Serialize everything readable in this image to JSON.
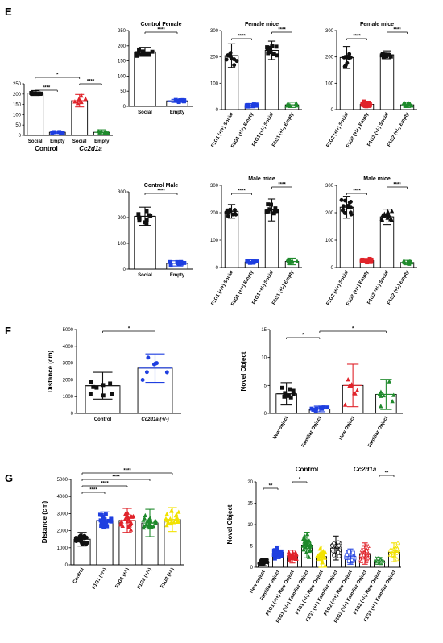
{
  "panel_labels": {
    "e": "E",
    "f": "F",
    "g": "G"
  },
  "colors": {
    "black": "#111111",
    "blue": "#1f3fe0",
    "red": "#e0242b",
    "green": "#1f8a2c",
    "yellow": "#f2e200"
  },
  "chart_data": [
    {
      "id": "e_main",
      "type": "bar",
      "title": "",
      "ylabel": "",
      "ylim": [
        0,
        250
      ],
      "yticks": [
        0,
        50,
        100,
        150,
        200,
        250
      ],
      "categories": [
        "Social",
        "Empty",
        "Social",
        "Empty"
      ],
      "groups": [
        {
          "label": "Control",
          "span": [
            0,
            1
          ],
          "italic": false
        },
        {
          "label": "Cc2d1a",
          "span": [
            2,
            3
          ],
          "italic": true
        }
      ],
      "values": [
        205,
        15,
        168,
        15
      ],
      "errors": [
        12,
        6,
        30,
        12
      ],
      "colors": [
        "black",
        "blue",
        "red",
        "green"
      ],
      "markers": [
        "square",
        "square",
        "triangle",
        "triangle"
      ],
      "rotate": false,
      "sig": [
        {
          "a": 0,
          "b": 1,
          "label": "****"
        },
        {
          "a": 2,
          "b": 3,
          "label": "****"
        },
        {
          "a": 0,
          "b": 2,
          "label": "*"
        }
      ]
    },
    {
      "id": "e_cf",
      "type": "bar",
      "title": "Control Female",
      "ylabel": "",
      "ylim": [
        0,
        250
      ],
      "yticks": [
        0,
        50,
        100,
        150,
        200,
        250
      ],
      "categories": [
        "Social",
        "Empty"
      ],
      "values": [
        180,
        18
      ],
      "errors": [
        15,
        5
      ],
      "colors": [
        "black",
        "blue"
      ],
      "markers": [
        "square",
        "square"
      ],
      "rotate": false,
      "sig": [
        {
          "a": 0,
          "b": 1,
          "label": "****"
        }
      ]
    },
    {
      "id": "e_fm1",
      "type": "bar",
      "title": "Female mice",
      "ylabel": "",
      "ylim": [
        0,
        300
      ],
      "yticks": [
        0,
        100,
        200,
        300
      ],
      "categories": [
        "F1G1 (+/+) Social",
        "F1G1 (+/+) Empty",
        "F1G1 (+/-) Social",
        "F1G1 (+/-) Empty"
      ],
      "values": [
        205,
        15,
        225,
        18
      ],
      "errors": [
        45,
        8,
        35,
        10
      ],
      "colors": [
        "black",
        "blue",
        "black",
        "green"
      ],
      "markers": [
        "circle",
        "square",
        "square",
        "triangle"
      ],
      "rotate": true,
      "sig": [
        {
          "a": 0,
          "b": 1,
          "label": "****"
        },
        {
          "a": 2,
          "b": 3,
          "label": "****"
        }
      ]
    },
    {
      "id": "e_fm2",
      "type": "bar",
      "title": "Female mice",
      "ylabel": "",
      "ylim": [
        0,
        300
      ],
      "yticks": [
        0,
        100,
        200,
        300
      ],
      "categories": [
        "F1G2 (+/+) Social",
        "F1G2 (+/+) Empty",
        "F1G2 (+/-) Social",
        "F1G2 (+/-) Empty"
      ],
      "values": [
        198,
        20,
        208,
        18
      ],
      "errors": [
        42,
        12,
        15,
        10
      ],
      "colors": [
        "black",
        "red",
        "black",
        "green"
      ],
      "markers": [
        "circle",
        "square",
        "square",
        "triangle"
      ],
      "rotate": true,
      "sig": [
        {
          "a": 0,
          "b": 1,
          "label": "****"
        },
        {
          "a": 2,
          "b": 3,
          "label": "****"
        }
      ]
    },
    {
      "id": "e_cm",
      "type": "bar",
      "title": "Control Male",
      "ylabel": "",
      "ylim": [
        0,
        300
      ],
      "yticks": [
        0,
        100,
        200,
        300
      ],
      "categories": [
        "Social",
        "Empty"
      ],
      "values": [
        205,
        22
      ],
      "errors": [
        35,
        10
      ],
      "colors": [
        "black",
        "blue"
      ],
      "markers": [
        "square",
        "square"
      ],
      "rotate": false,
      "sig": [
        {
          "a": 0,
          "b": 1,
          "label": "****"
        }
      ]
    },
    {
      "id": "e_mm1",
      "type": "bar",
      "title": "Male mice",
      "ylabel": "",
      "ylim": [
        0,
        300
      ],
      "yticks": [
        0,
        100,
        200,
        300
      ],
      "categories": [
        "F1G1 (+/+) Social",
        "F1G1 (+/+) Empty",
        "F1G1 (+/-) Social",
        "F1G1 (+/-) Empty"
      ],
      "values": [
        205,
        20,
        210,
        22
      ],
      "errors": [
        25,
        8,
        40,
        12
      ],
      "colors": [
        "black",
        "blue",
        "black",
        "green"
      ],
      "markers": [
        "circle",
        "square",
        "square",
        "triangle"
      ],
      "rotate": true,
      "sig": [
        {
          "a": 0,
          "b": 1,
          "label": "****"
        },
        {
          "a": 2,
          "b": 3,
          "label": "****"
        }
      ]
    },
    {
      "id": "e_mm2",
      "type": "bar",
      "title": "Male mice",
      "ylabel": "",
      "ylim": [
        0,
        300
      ],
      "yticks": [
        0,
        100,
        200,
        300
      ],
      "categories": [
        "F1G2 (+/+) Social",
        "F1G2 (+/+) Empty",
        "F1G2 (+/-) Social",
        "F1G2 (+/-) Empty"
      ],
      "values": [
        220,
        25,
        185,
        18
      ],
      "errors": [
        40,
        8,
        28,
        8
      ],
      "colors": [
        "black",
        "red",
        "black",
        "green"
      ],
      "markers": [
        "circle",
        "square",
        "triangle",
        "triangle"
      ],
      "rotate": true,
      "sig": [
        {
          "a": 0,
          "b": 1,
          "label": "****"
        },
        {
          "a": 2,
          "b": 3,
          "label": "****"
        }
      ]
    },
    {
      "id": "f_dist",
      "type": "bar",
      "title": "",
      "ylabel": "Distance (cm)",
      "ylim": [
        0,
        5000
      ],
      "yticks": [
        0,
        1000,
        2000,
        3000,
        4000,
        5000
      ],
      "categories": [
        "Control",
        "Cc2d1a (+/-)"
      ],
      "italic_categories": [
        false,
        true
      ],
      "values": [
        1650,
        2700
      ],
      "errors": [
        800,
        850
      ],
      "colors": [
        "black",
        "blue"
      ],
      "markers": [
        "square",
        "circle"
      ],
      "rotate": false,
      "sig": [
        {
          "a": 0,
          "b": 1,
          "label": "*"
        }
      ]
    },
    {
      "id": "f_novel",
      "type": "bar",
      "title": "",
      "ylabel": "Novel Object",
      "ylim": [
        0,
        15
      ],
      "yticks": [
        0,
        5,
        10,
        15
      ],
      "categories": [
        "New object",
        "Familiar Object",
        "New Object",
        "Familiar Object"
      ],
      "values": [
        3.5,
        0.8,
        5.0,
        3.4
      ],
      "errors": [
        2.0,
        0.5,
        3.8,
        2.7
      ],
      "colors": [
        "black",
        "blue",
        "red",
        "green"
      ],
      "markers": [
        "square",
        "square",
        "triangle",
        "triangle"
      ],
      "rotate": true,
      "sig": [
        {
          "a": 0,
          "b": 1,
          "label": "*"
        },
        {
          "a": 1,
          "b": 3,
          "label": "*"
        }
      ]
    },
    {
      "id": "g_dist",
      "type": "bar",
      "title": "",
      "ylabel": "Distance (cm)",
      "ylim": [
        0,
        5000
      ],
      "yticks": [
        0,
        1000,
        2000,
        3000,
        4000,
        5000
      ],
      "categories": [
        "Control",
        "F1G1 (+/+)",
        "F1G1 (+/-)",
        "F1G2 (+/+)",
        "F1G2 (+/-)"
      ],
      "values": [
        1500,
        2600,
        2600,
        2450,
        2650
      ],
      "errors": [
        400,
        500,
        700,
        800,
        700
      ],
      "colors": [
        "black",
        "blue",
        "red",
        "green",
        "yellow"
      ],
      "markers": [
        "circle",
        "square",
        "triangle",
        "triangle",
        "triangle"
      ],
      "rotate": true,
      "sig": [
        {
          "a": 0,
          "b": 1,
          "label": "****"
        },
        {
          "a": 0,
          "b": 2,
          "label": "****"
        },
        {
          "a": 0,
          "b": 3,
          "label": "****"
        },
        {
          "a": 0,
          "b": 4,
          "label": "****"
        }
      ]
    },
    {
      "id": "g_novel",
      "type": "bar",
      "title": "",
      "ylabel": "Novel Object",
      "ylim": [
        0,
        20
      ],
      "yticks": [
        0,
        5,
        10,
        15,
        20
      ],
      "headers": [
        {
          "label": "Control",
          "italic": false,
          "at": 3.5
        },
        {
          "label": "Cc2d1a",
          "italic": true,
          "at": 7.5
        }
      ],
      "categories": [
        "New object",
        "Familiar object",
        "F1G1 (+/+) New Object",
        "F1G1 (+/+) Familiar Object",
        "F1G1 (+/-) New Object",
        "F1G1 (+/-) Familiar Object",
        "F1G2 (+/+) New Object",
        "F1G2 (+/+) Familiar Object",
        "F1G2 (+/-) New Object",
        "F1G2 (+/-) Familiar Object"
      ],
      "values": [
        1.2,
        3.5,
        2.5,
        5.2,
        2.5,
        4.5,
        2.5,
        3.2,
        1.5,
        3.5
      ],
      "errors": [
        0.8,
        1.5,
        1.5,
        3.0,
        2.5,
        2.8,
        1.8,
        2.5,
        0.8,
        2.2
      ],
      "colors": [
        "black",
        "blue",
        "red",
        "green",
        "yellow",
        "black",
        "blue",
        "red",
        "green",
        "yellow"
      ],
      "markers": [
        "circle",
        "square",
        "triangle",
        "triangle",
        "triangle",
        "circle-open",
        "square-open",
        "triangle-open",
        "triangle-open",
        "triangle-open"
      ],
      "rotate": true,
      "sig": [
        {
          "a": 0,
          "b": 1,
          "label": "**"
        },
        {
          "a": 2,
          "b": 3,
          "label": "*"
        },
        {
          "a": 8,
          "b": 9,
          "label": "**"
        }
      ]
    }
  ]
}
